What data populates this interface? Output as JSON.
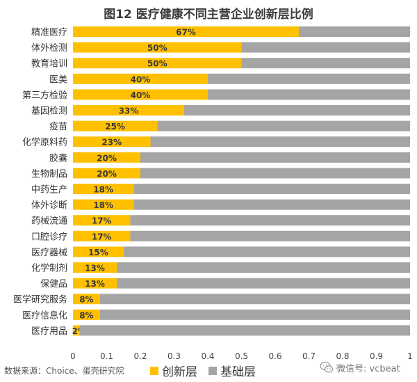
{
  "chart_data": {
    "type": "bar",
    "orientation": "horizontal",
    "stacked": true,
    "title": "图12  医疗健康不同主营企业创新层比例",
    "categories": [
      "精准医疗",
      "体外检测",
      "教育培训",
      "医美",
      "第三方检验",
      "基因检测",
      "疫苗",
      "化学原料药",
      "胶囊",
      "生物制品",
      "中药生产",
      "体外诊断",
      "药械流通",
      "口腔诊疗",
      "医疗器械",
      "化学制剂",
      "保健品",
      "医学研究服务",
      "医疗信息化",
      "医疗用品"
    ],
    "series": [
      {
        "name": "创新层",
        "color": "#FFC000",
        "values": [
          0.67,
          0.5,
          0.5,
          0.4,
          0.4,
          0.33,
          0.25,
          0.23,
          0.2,
          0.2,
          0.18,
          0.18,
          0.17,
          0.17,
          0.15,
          0.13,
          0.13,
          0.08,
          0.08,
          0.02
        ],
        "labels": [
          "67%",
          "50%",
          "50%",
          "40%",
          "40%",
          "33%",
          "25%",
          "23%",
          "20%",
          "20%",
          "18%",
          "18%",
          "17%",
          "17%",
          "15%",
          "13%",
          "13%",
          "8%",
          "8%",
          "2%"
        ]
      },
      {
        "name": "基础层",
        "color": "#A5A5A5",
        "values": [
          0.33,
          0.5,
          0.5,
          0.6,
          0.6,
          0.67,
          0.75,
          0.77,
          0.8,
          0.8,
          0.82,
          0.82,
          0.83,
          0.83,
          0.85,
          0.87,
          0.87,
          0.92,
          0.92,
          0.98
        ]
      }
    ],
    "xlim": [
      0,
      1
    ],
    "xticks": [
      "0",
      "0.1",
      "0.2",
      "0.3",
      "0.4",
      "0.5",
      "0.6",
      "0.7",
      "0.8",
      "0.9",
      "1"
    ],
    "xlabel": "",
    "ylabel": "",
    "legend_position": "bottom-center"
  },
  "footer": {
    "source": "数据来源：Choice、蛋壳研究院",
    "watermark": "微信号: vcbeat"
  }
}
